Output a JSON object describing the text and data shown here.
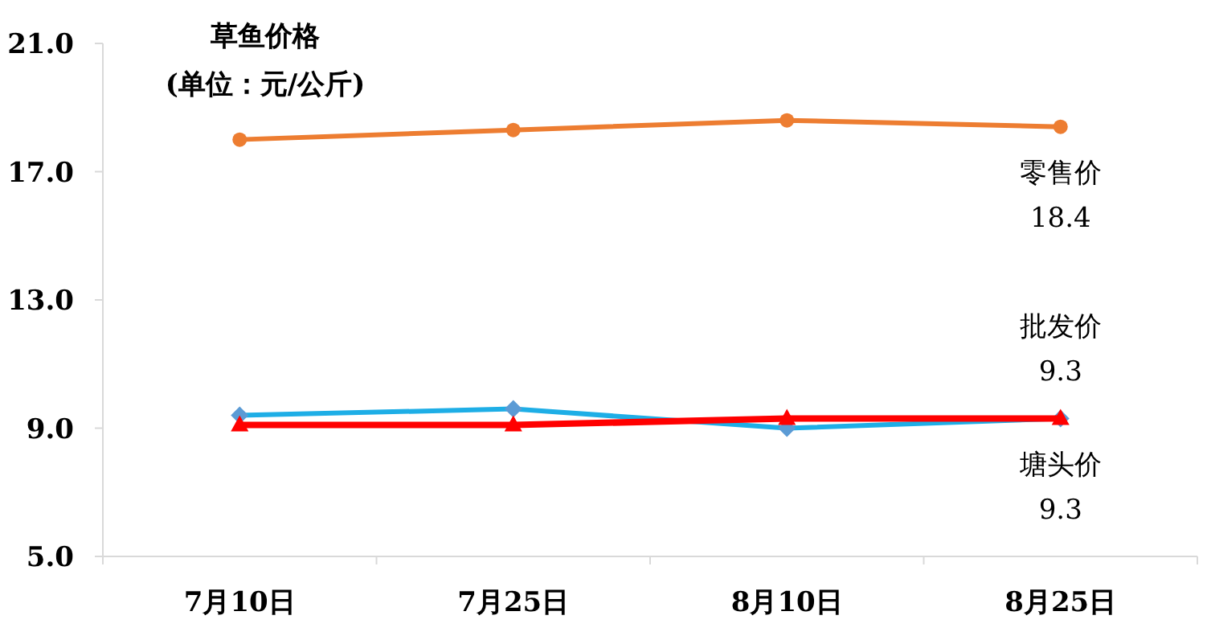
{
  "chart_data": {
    "type": "line",
    "title": "草鱼价格",
    "subtitle": "(单位：元/公斤)",
    "categories": [
      "7月10日",
      "7月25日",
      "8月10日",
      "8月25日"
    ],
    "series": [
      {
        "name": "零售价",
        "color": "#ed7d31",
        "marker": "circle",
        "values": [
          18.0,
          18.3,
          18.6,
          18.4
        ],
        "value_labels": [
          null,
          null,
          null,
          "18.4"
        ]
      },
      {
        "name": "塘头价",
        "color": "#1eaee6",
        "marker": "diamond",
        "values": [
          9.4,
          9.6,
          9.0,
          9.3
        ],
        "value_labels": [
          null,
          null,
          null,
          "9.3"
        ]
      },
      {
        "name": "批发价",
        "color": "#ff0000",
        "marker": "triangle",
        "values": [
          9.1,
          9.1,
          9.3,
          9.3
        ],
        "value_labels": [
          null,
          null,
          null,
          "9.3"
        ]
      }
    ],
    "ylim": [
      5,
      21
    ],
    "yticks": [
      {
        "value": 5,
        "label": "5.0"
      },
      {
        "value": 9,
        "label": "9.0"
      },
      {
        "value": 13,
        "label": "13.0"
      },
      {
        "value": 17,
        "label": "17.0"
      },
      {
        "value": 21,
        "label": "21.0"
      }
    ],
    "grid": false
  }
}
